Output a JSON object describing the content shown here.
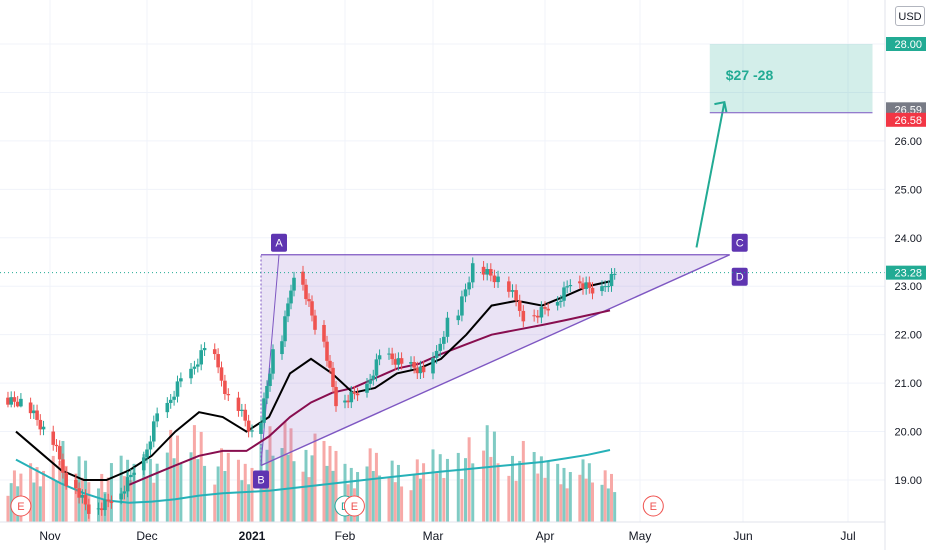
{
  "chart_data": {
    "type": "candlestick",
    "currency": "USD",
    "ylim": [
      18.2,
      29.0
    ],
    "x_axis_labels": [
      "Nov",
      "Dec",
      "2021",
      "Feb",
      "Mar",
      "Apr",
      "May",
      "Jun",
      "Jul"
    ],
    "y_axis_labels": [
      "19.00",
      "20.00",
      "21.00",
      "22.00",
      "23.00",
      "24.00",
      "25.00",
      "26.00",
      "28.00"
    ],
    "price_tags": [
      {
        "value": 28.0,
        "label": "28.00",
        "color": "#22ab94"
      },
      {
        "value": 26.59,
        "label": "26.59",
        "color": "#787b86"
      },
      {
        "value": 26.58,
        "label": "26.58",
        "color": "#f23645"
      },
      {
        "value": 23.28,
        "label": "23.28",
        "color": "#22ab94"
      }
    ],
    "last_price": 23.28,
    "candles": [
      {
        "date": "2020-10-19",
        "open": 20.7,
        "high": 20.9,
        "low": 20.5,
        "close": 20.6
      },
      {
        "date": "2020-10-26",
        "open": 20.6,
        "high": 20.7,
        "low": 19.9,
        "close": 20.0
      },
      {
        "date": "2020-11-02",
        "open": 20.0,
        "high": 20.3,
        "low": 18.8,
        "close": 19.0
      },
      {
        "date": "2020-11-09",
        "open": 19.0,
        "high": 19.2,
        "low": 18.2,
        "close": 18.4
      },
      {
        "date": "2020-11-16",
        "open": 18.4,
        "high": 18.8,
        "low": 18.2,
        "close": 18.6
      },
      {
        "date": "2020-11-23",
        "open": 18.6,
        "high": 19.4,
        "low": 18.5,
        "close": 19.2
      },
      {
        "date": "2020-11-30",
        "open": 19.2,
        "high": 20.6,
        "low": 19.1,
        "close": 20.4
      },
      {
        "date": "2020-12-07",
        "open": 20.4,
        "high": 21.3,
        "low": 20.2,
        "close": 21.1
      },
      {
        "date": "2020-12-14",
        "open": 21.1,
        "high": 21.9,
        "low": 20.9,
        "close": 21.7
      },
      {
        "date": "2020-12-21",
        "open": 21.7,
        "high": 21.9,
        "low": 20.5,
        "close": 20.7
      },
      {
        "date": "2020-12-28",
        "open": 20.7,
        "high": 20.9,
        "low": 19.8,
        "close": 19.95
      },
      {
        "date": "2021-01-04",
        "open": 19.95,
        "high": 21.8,
        "low": 19.4,
        "close": 21.6
      },
      {
        "date": "2021-01-11",
        "open": 21.6,
        "high": 23.6,
        "low": 21.4,
        "close": 23.3
      },
      {
        "date": "2021-01-18",
        "open": 23.3,
        "high": 23.6,
        "low": 22.0,
        "close": 22.2
      },
      {
        "date": "2021-01-25",
        "open": 22.2,
        "high": 22.3,
        "low": 20.4,
        "close": 20.6
      },
      {
        "date": "2021-02-01",
        "open": 20.6,
        "high": 21.0,
        "low": 20.1,
        "close": 20.8
      },
      {
        "date": "2021-02-08",
        "open": 20.8,
        "high": 21.9,
        "low": 20.7,
        "close": 21.6
      },
      {
        "date": "2021-02-15",
        "open": 21.6,
        "high": 22.1,
        "low": 21.2,
        "close": 21.4
      },
      {
        "date": "2021-02-22",
        "open": 21.4,
        "high": 21.7,
        "low": 20.9,
        "close": 21.2
      },
      {
        "date": "2021-03-01",
        "open": 21.2,
        "high": 22.5,
        "low": 21.0,
        "close": 22.3
      },
      {
        "date": "2021-03-08",
        "open": 22.3,
        "high": 23.6,
        "low": 22.2,
        "close": 23.4
      },
      {
        "date": "2021-03-15",
        "open": 23.4,
        "high": 23.7,
        "low": 22.9,
        "close": 23.1
      },
      {
        "date": "2021-03-22",
        "open": 23.1,
        "high": 23.2,
        "low": 22.1,
        "close": 22.4
      },
      {
        "date": "2021-03-29",
        "open": 22.4,
        "high": 22.8,
        "low": 22.1,
        "close": 22.6
      },
      {
        "date": "2021-04-05",
        "open": 22.6,
        "high": 23.3,
        "low": 22.5,
        "close": 23.1
      },
      {
        "date": "2021-04-12",
        "open": 23.1,
        "high": 23.3,
        "low": 22.7,
        "close": 22.9
      },
      {
        "date": "2021-04-19",
        "open": 22.9,
        "high": 23.4,
        "low": 22.8,
        "close": 23.28
      }
    ],
    "volume": [
      14,
      17,
      22,
      19,
      16,
      18,
      21,
      25,
      30,
      20,
      18,
      26,
      29,
      24,
      22,
      18,
      20,
      19,
      17,
      21,
      23,
      28,
      22,
      19,
      18,
      17,
      16
    ],
    "ma_black": [
      20.0,
      19.6,
      19.2,
      19.0,
      19.0,
      19.2,
      19.5,
      20.0,
      20.4,
      20.3,
      20.0,
      20.3,
      21.2,
      21.5,
      21.2,
      20.8,
      20.9,
      21.2,
      21.3,
      21.5,
      22.0,
      22.6,
      22.7,
      22.6,
      22.8,
      23.0,
      23.1
    ],
    "ma_maroon": [
      null,
      null,
      null,
      null,
      null,
      18.9,
      19.1,
      19.3,
      19.5,
      19.6,
      19.6,
      19.9,
      20.3,
      20.6,
      20.8,
      20.9,
      21.1,
      21.3,
      21.4,
      21.6,
      21.8,
      22.0,
      22.1,
      22.2,
      22.3,
      22.4,
      22.5
    ],
    "volume_ma": [
      0.52,
      0.42,
      0.32,
      0.24,
      0.18,
      0.16,
      0.17,
      0.19,
      0.22,
      0.24,
      0.25,
      0.26,
      0.28,
      0.3,
      0.32,
      0.34,
      0.36,
      0.38,
      0.4,
      0.42,
      0.44,
      0.46,
      0.48,
      0.5,
      0.53,
      0.56,
      0.6
    ],
    "earnings_markers": [
      {
        "date": "2020-10-23",
        "label": "E"
      },
      {
        "date": "2021-02-01",
        "label": "D"
      },
      {
        "date": "2021-02-04",
        "label": "E"
      },
      {
        "date": "2021-05-05",
        "label": "E"
      }
    ],
    "pattern": {
      "type": "ascending triangle",
      "points": [
        {
          "label": "A",
          "date": "2021-01-04",
          "price": 23.65
        },
        {
          "label": "B",
          "date": "2021-01-04",
          "price": 19.3
        },
        {
          "label": "C",
          "date": "2021-05-28",
          "price": 23.65
        },
        {
          "label": "D",
          "date": "2021-05-28",
          "price": 23.65
        }
      ]
    },
    "projection": {
      "from_date": "2021-05-18",
      "from_price": 23.8,
      "to_date": "2021-05-24",
      "to_price": 26.8
    },
    "target_zone": {
      "label": "$27 -28",
      "start_date": "2021-05-22",
      "end_date": "2021-07-08",
      "low": 26.58,
      "high": 28.0
    },
    "colors": {
      "up": "#26a69a",
      "down": "#ef5350",
      "vol_up": "#80cbc4",
      "vol_down": "#f7a9a7",
      "ma_black": "#000000",
      "ma_maroon": "#880e4f",
      "volume_ma": "#26b1b8",
      "pattern": "#7e57c2",
      "pattern_fill": "rgba(149,117,205,0.2)",
      "target_fill": "rgba(34,171,148,0.2)",
      "target_text": "#22ab94",
      "grid": "#f0f3fa",
      "axis_text": "#131722"
    },
    "grid": true
  }
}
